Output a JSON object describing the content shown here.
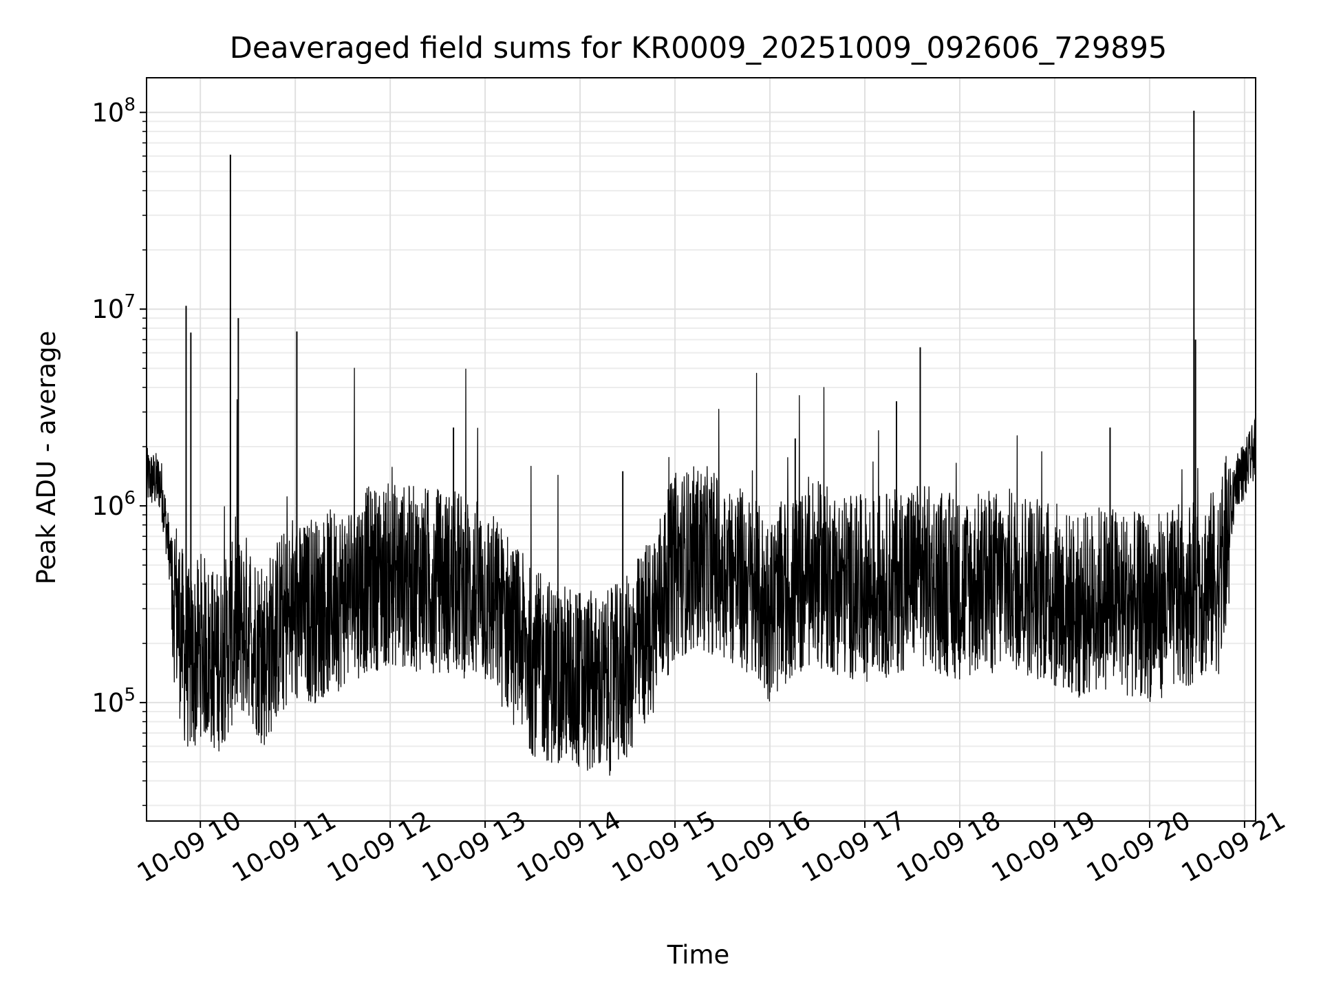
{
  "chart_data": {
    "type": "line",
    "title": "Deaveraged field sums for KR0009_20251009_092606_729895",
    "xlabel": "Time",
    "ylabel": "Peak ADU - average",
    "x_axis": {
      "type": "datetime",
      "range": [
        "2025-10-09T09:26",
        "2025-10-09T21:07"
      ]
    },
    "y_axis": {
      "type": "log",
      "range": [
        25000,
        150000000
      ]
    },
    "grid": true,
    "x_tick_labels": [
      "10-09 10",
      "10-09 11",
      "10-09 12",
      "10-09 13",
      "10-09 14",
      "10-09 15",
      "10-09 16",
      "10-09 17",
      "10-09 18",
      "10-09 19",
      "10-09 20",
      "10-09 21"
    ],
    "y_tick_labels": [
      {
        "base": "10",
        "exp": "5",
        "value": 100000
      },
      {
        "base": "10",
        "exp": "6",
        "value": 1000000
      },
      {
        "base": "10",
        "exp": "7",
        "value": 10000000
      },
      {
        "base": "10",
        "exp": "8",
        "value": 100000000
      }
    ],
    "series": [
      {
        "color": "#000000",
        "x": [
          "09:26",
          "09:35",
          "09:45",
          "09:50",
          "09:55",
          "10:00",
          "10:10",
          "10:15",
          "10:20",
          "10:30",
          "10:40",
          "10:50",
          "11:00",
          "11:15",
          "11:30",
          "11:45",
          "12:00",
          "12:15",
          "12:30",
          "12:45",
          "13:00",
          "13:15",
          "13:30",
          "13:45",
          "14:00",
          "14:15",
          "14:30",
          "14:45",
          "15:00",
          "15:15",
          "15:30",
          "15:45",
          "16:00",
          "16:15",
          "16:30",
          "16:45",
          "17:00",
          "17:15",
          "17:30",
          "17:45",
          "18:00",
          "18:15",
          "18:30",
          "18:45",
          "19:00",
          "19:15",
          "19:30",
          "19:45",
          "20:00",
          "20:15",
          "20:30",
          "20:45",
          "20:55",
          "21:00",
          "21:07"
        ],
        "y": [
          1400000,
          1300000,
          300000,
          180000,
          150000,
          200000,
          160000,
          180000,
          220000,
          250000,
          170000,
          250000,
          270000,
          300000,
          350000,
          420000,
          450000,
          430000,
          420000,
          400000,
          350000,
          250000,
          160000,
          140000,
          130000,
          120000,
          150000,
          250000,
          500000,
          550000,
          500000,
          400000,
          300000,
          380000,
          450000,
          400000,
          380000,
          400000,
          450000,
          420000,
          380000,
          400000,
          420000,
          400000,
          350000,
          300000,
          350000,
          320000,
          300000,
          330000,
          380000,
          420000,
          1400000,
          1500000,
          2000000
        ],
        "spikes": [
          {
            "x": "09:51",
            "y": 10400000
          },
          {
            "x": "09:54",
            "y": 7600000
          },
          {
            "x": "10:19",
            "y": 61000000
          },
          {
            "x": "10:24",
            "y": 9000000
          },
          {
            "x": "11:01",
            "y": 7700000
          },
          {
            "x": "12:40",
            "y": 2500000
          },
          {
            "x": "14:27",
            "y": 1500000
          },
          {
            "x": "16:16",
            "y": 2200000
          },
          {
            "x": "17:20",
            "y": 3400000
          },
          {
            "x": "17:35",
            "y": 6400000
          },
          {
            "x": "19:35",
            "y": 2500000
          },
          {
            "x": "20:28",
            "y": 102000000
          },
          {
            "x": "20:29",
            "y": 7000000
          }
        ]
      }
    ]
  }
}
